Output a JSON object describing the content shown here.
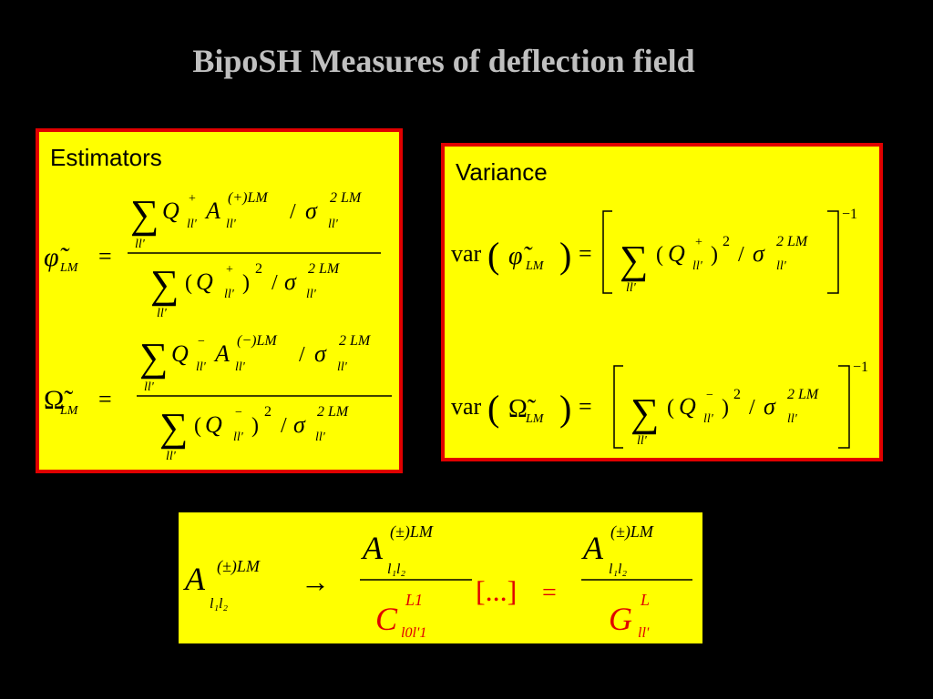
{
  "title": "BipoSH Measures of deflection field",
  "estimators": {
    "label": "Estimators",
    "phi": [
      "φ̃",
      "LM",
      "=",
      "∑",
      "Q",
      "+",
      "ll'",
      "A",
      "(+)LM",
      "ll'",
      "/",
      "σ",
      "2 LM",
      "ll'",
      "ll'",
      "∑",
      "(",
      "Q",
      "+",
      "ll'",
      ")",
      "2",
      "/",
      "σ",
      "2 LM",
      "ll'",
      "ll'"
    ],
    "omega": [
      "Ω̃",
      "LM",
      "=",
      "∑",
      "Q",
      "−",
      "ll'",
      "A",
      "(−)LM",
      "ll'",
      "/",
      "σ",
      "2 LM",
      "ll'",
      "ll'",
      "∑",
      "(",
      "Q",
      "−",
      "ll'",
      ")",
      "2",
      "/",
      "σ",
      "2 LM",
      "ll'",
      "ll'"
    ]
  },
  "variance": {
    "label": "Variance",
    "phi": [
      "var",
      "(",
      "φ̃",
      "LM",
      ")",
      "=",
      "∑",
      "(",
      "Q",
      "+",
      "ll'",
      ")",
      "2",
      "/",
      "σ",
      "2 LM",
      "ll'",
      "ll'",
      "−1"
    ],
    "omega": [
      "var",
      "(",
      "Ω̃",
      "LM",
      ")",
      "=",
      "∑",
      "(",
      "Q",
      "−",
      "ll'",
      ")",
      "2",
      "/",
      "σ",
      "2 LM",
      "ll'",
      "ll'",
      "−1"
    ]
  },
  "relation": [
    "A",
    "(±)LM",
    "l₁l₂",
    "→",
    "A",
    "(±)LM",
    "l₁l₂",
    "C",
    "L1",
    "l0l'1",
    "[...]",
    "=",
    "A",
    "(±)LM",
    "l₁l₂",
    "G",
    "L",
    "ll'"
  ]
}
